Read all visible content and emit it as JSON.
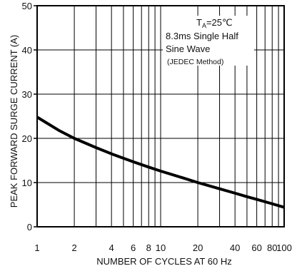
{
  "chart_data": {
    "type": "line",
    "xlabel": "NUMBER OF CYCLES AT 60 Hz",
    "ylabel": "PEAK FORWARD SURGE CURRENT (A)",
    "x_scale": "log",
    "xlim": [
      1,
      100
    ],
    "ylim": [
      0,
      50
    ],
    "x_ticks": [
      1,
      2,
      4,
      6,
      8,
      10,
      20,
      40,
      60,
      80,
      100
    ],
    "x_tick_labels": [
      "1",
      "2",
      "4",
      "6",
      "8",
      "10",
      "20",
      "40",
      "60",
      "80",
      "100"
    ],
    "y_ticks": [
      0,
      10,
      20,
      30,
      40,
      50
    ],
    "y_tick_labels": [
      "0",
      "10",
      "20",
      "30",
      "40",
      "50"
    ],
    "grid": true,
    "series": [
      {
        "x": [
          1,
          1.5,
          2,
          3,
          4,
          5,
          6,
          8,
          10,
          15,
          20,
          30,
          40,
          50,
          60,
          80,
          100
        ],
        "y": [
          24.8,
          21.8,
          20.0,
          17.9,
          16.5,
          15.5,
          14.7,
          13.5,
          12.6,
          11.1,
          10.0,
          8.6,
          7.6,
          6.8,
          6.2,
          5.2,
          4.4
        ]
      }
    ],
    "annotations": {
      "ta_symbol": "T",
      "ta_subscript": "A",
      "ta_value": "=25℃",
      "line2": "8.3ms Single Half",
      "line3": "Sine Wave",
      "line4": "(JEDEC Method)"
    }
  }
}
